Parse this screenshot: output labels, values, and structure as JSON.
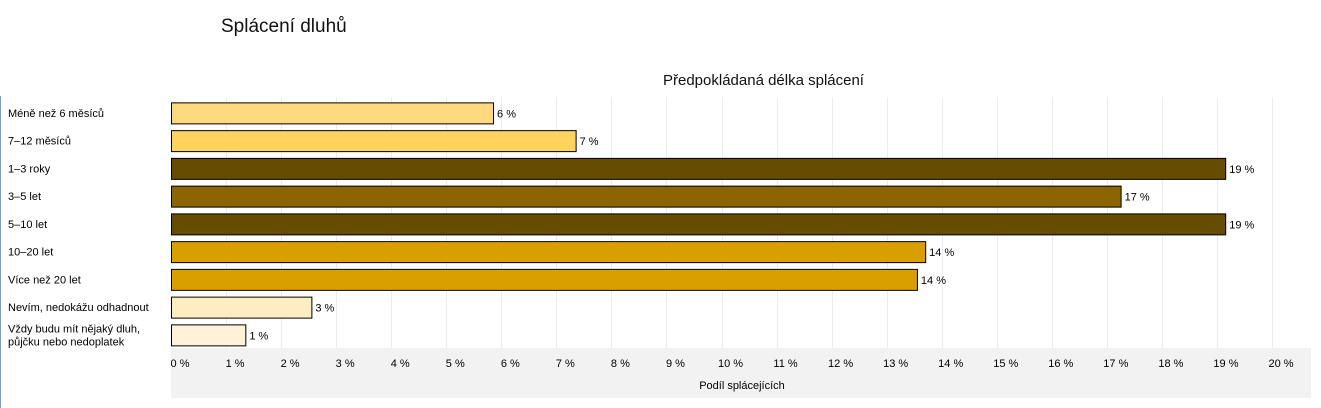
{
  "page": {
    "title": "Splácení dluhů"
  },
  "chart_data": {
    "type": "bar",
    "orientation": "horizontal",
    "title": "Předpokládaná délka splácení",
    "xlabel": "Podíl splácejících",
    "ylabel": "",
    "xlim": [
      0,
      20
    ],
    "x_ticks": [
      0,
      1,
      2,
      3,
      4,
      5,
      6,
      7,
      8,
      9,
      10,
      11,
      12,
      13,
      14,
      15,
      16,
      17,
      18,
      19,
      20
    ],
    "tick_suffix": " %",
    "grid": true,
    "legend": "none",
    "categories": [
      [
        "Méně než 6 měsíců"
      ],
      [
        "7–12 měsíců"
      ],
      [
        "1–3 roky"
      ],
      [
        "3–5 let"
      ],
      [
        "5–10 let"
      ],
      [
        "10–20 let"
      ],
      [
        "Více než 20 let"
      ],
      [
        "Nevím, nedokážu odhadnout"
      ],
      [
        "Vždy budu mít nějaký dluh,",
        "půjčku nebo nedoplatek"
      ]
    ],
    "values": [
      5.85,
      7.35,
      19.15,
      17.25,
      19.15,
      13.7,
      13.55,
      2.55,
      1.35
    ],
    "data_labels": [
      "6 %",
      "7 %",
      "19 %",
      "17 %",
      "19 %",
      "14 %",
      "14 %",
      "3 %",
      "1 %"
    ],
    "colors": [
      "#FFD97F",
      "#FFD45C",
      "#664C00",
      "#8C6500",
      "#664C00",
      "#D99E00",
      "#D99E00",
      "#FFEDC2",
      "#FFF2D9"
    ],
    "bar_stroke": "#000000",
    "grid_color": "#ececec",
    "axis_band_color": "#f2f2f2"
  }
}
